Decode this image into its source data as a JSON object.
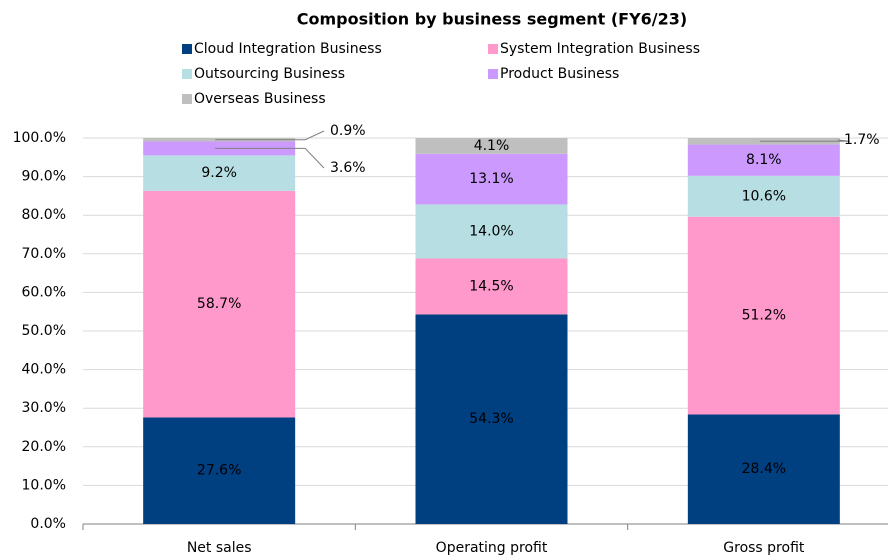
{
  "chart_data": {
    "type": "stacked-bar",
    "title": "Composition by business segment (FY6/23)",
    "categories": [
      "Net sales",
      "Operating profit",
      "Gross profit"
    ],
    "series": [
      {
        "name": "Cloud Integration Business",
        "color": "#003f80",
        "values": [
          27.6,
          54.3,
          28.4
        ],
        "value_labels": [
          "27.6%",
          "54.3%",
          "28.4%"
        ]
      },
      {
        "name": "System Integration Business",
        "color": "#ff99cc",
        "values": [
          58.7,
          14.5,
          51.2
        ],
        "value_labels": [
          "58.7%",
          "14.5%",
          "51.2%"
        ]
      },
      {
        "name": "Outsourcing Business",
        "color": "#b7dee2",
        "values": [
          9.2,
          14.0,
          10.6
        ],
        "value_labels": [
          "9.2%",
          "14.0%",
          "10.6%"
        ]
      },
      {
        "name": "Product Business",
        "color": "#cc99ff",
        "values": [
          3.6,
          13.1,
          8.1
        ],
        "value_labels": [
          "3.6%",
          "13.1%",
          "8.1%"
        ]
      },
      {
        "name": "Overseas Business",
        "color": "#bfbfbf",
        "values": [
          0.9,
          4.1,
          1.7
        ],
        "value_labels": [
          "0.9%",
          "4.1%",
          "1.7%"
        ]
      }
    ],
    "ylim": [
      0,
      100
    ],
    "yticks": [
      {
        "value": 0,
        "label": "0.0%"
      },
      {
        "value": 10,
        "label": "10.0%"
      },
      {
        "value": 20,
        "label": "20.0%"
      },
      {
        "value": 30,
        "label": "30.0%"
      },
      {
        "value": 40,
        "label": "40.0%"
      },
      {
        "value": 50,
        "label": "50.0%"
      },
      {
        "value": 60,
        "label": "60.0%"
      },
      {
        "value": 70,
        "label": "70.0%"
      },
      {
        "value": 80,
        "label": "80.0%"
      },
      {
        "value": 90,
        "label": "90.0%"
      },
      {
        "value": 100,
        "label": "100.0%"
      }
    ],
    "grid": true,
    "legend": "top"
  }
}
